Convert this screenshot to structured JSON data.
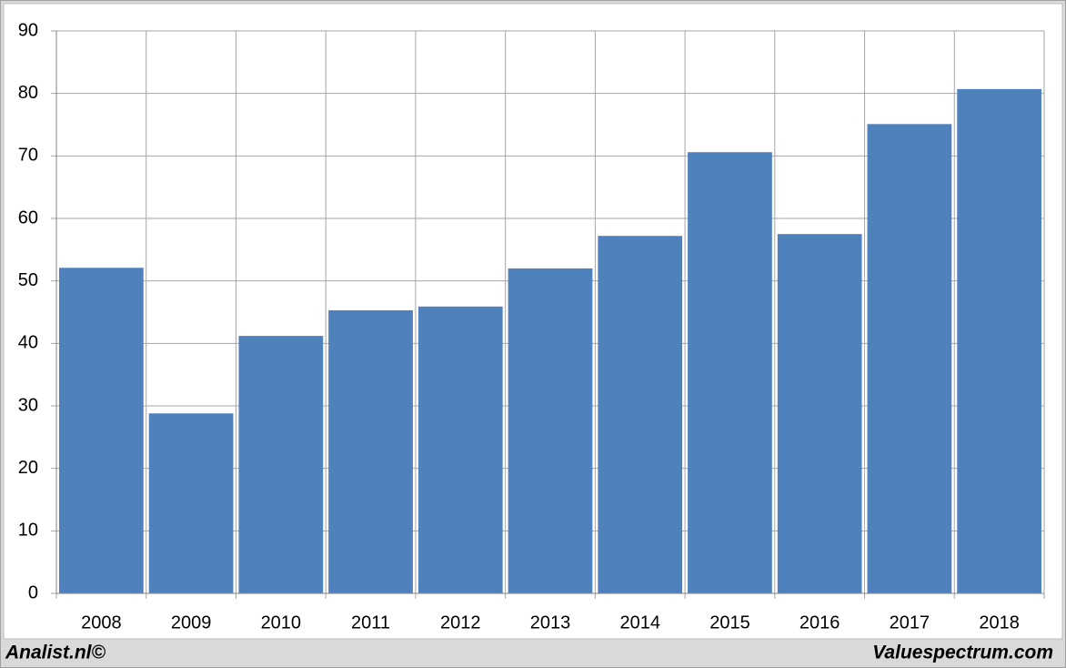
{
  "chart_data": {
    "type": "bar",
    "categories": [
      "2008",
      "2009",
      "2010",
      "2011",
      "2012",
      "2013",
      "2014",
      "2015",
      "2016",
      "2017",
      "2018"
    ],
    "values": [
      52.1,
      28.8,
      41.2,
      45.3,
      45.9,
      52.0,
      57.2,
      70.6,
      57.5,
      75.1,
      80.7
    ],
    "color": "#4f81bd",
    "ylim": [
      0,
      90
    ],
    "yticks": [
      0,
      10,
      20,
      30,
      40,
      50,
      60,
      70,
      80,
      90
    ],
    "grid": true
  },
  "footer": {
    "left": "Analist.nl©",
    "right": "Valuespectrum.com"
  }
}
